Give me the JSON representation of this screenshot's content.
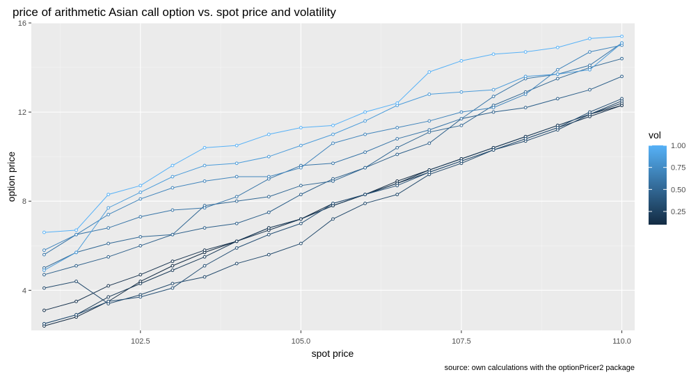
{
  "chart_data": {
    "type": "line",
    "title": "price of arithmetic Asian call option vs. spot price and volatility",
    "xlabel": "spot price",
    "ylabel": "option price",
    "caption": "source: own calculations with the optionPricer2 package",
    "xlim": [
      100.8,
      110.2
    ],
    "ylim": [
      2.2,
      16.0
    ],
    "x_ticks": [
      102.5,
      105.0,
      107.5,
      110.0
    ],
    "x_tick_labels": [
      "102.5",
      "105.0",
      "107.5",
      "110.0"
    ],
    "y_ticks": [
      4,
      8,
      12,
      16
    ],
    "y_tick_labels": [
      "4",
      "8",
      "12",
      "16"
    ],
    "grid": true,
    "legend": {
      "title": "vol",
      "position": "right",
      "labels": [
        "1.00",
        "0.75",
        "0.50",
        "0.25"
      ],
      "label_values": [
        1.0,
        0.75,
        0.5,
        0.25
      ],
      "range": [
        0.1,
        1.0
      ],
      "color_low": "#132b43",
      "color_high": "#56b1f7"
    },
    "x": [
      101.0,
      101.5,
      102.0,
      102.5,
      103.0,
      103.5,
      104.0,
      104.5,
      105.0,
      105.5,
      106.0,
      106.5,
      107.0,
      107.5,
      108.0,
      108.5,
      109.0,
      109.5,
      110.0
    ],
    "series": [
      {
        "vol": 0.1,
        "values": [
          2.4,
          2.8,
          3.5,
          4.4,
          5.1,
          5.7,
          6.2,
          6.8,
          7.2,
          7.9,
          8.3,
          8.9,
          9.4,
          9.9,
          10.4,
          10.9,
          11.4,
          11.9,
          12.3
        ]
      },
      {
        "vol": 0.15,
        "values": [
          3.1,
          3.5,
          4.2,
          4.7,
          5.3,
          5.8,
          6.2,
          6.7,
          7.2,
          7.8,
          8.3,
          8.8,
          9.3,
          9.8,
          10.3,
          10.8,
          11.3,
          11.8,
          12.3
        ]
      },
      {
        "vol": 0.2,
        "values": [
          2.5,
          2.9,
          3.7,
          4.3,
          4.9,
          5.5,
          6.2,
          6.8,
          7.2,
          7.8,
          8.3,
          8.8,
          9.4,
          9.9,
          10.4,
          10.9,
          11.4,
          11.9,
          12.4
        ]
      },
      {
        "vol": 0.3,
        "values": [
          4.1,
          4.4,
          3.4,
          3.8,
          4.3,
          4.6,
          5.2,
          5.6,
          6.1,
          7.2,
          7.9,
          8.3,
          9.2,
          9.7,
          10.3,
          10.7,
          11.2,
          11.9,
          12.5
        ]
      },
      {
        "vol": 0.35,
        "values": [
          2.5,
          2.9,
          3.5,
          3.7,
          4.1,
          5.1,
          5.9,
          6.5,
          7.0,
          7.9,
          8.3,
          8.7,
          9.3,
          9.8,
          10.3,
          10.8,
          11.3,
          12.0,
          12.6
        ]
      },
      {
        "vol": 0.45,
        "values": [
          4.7,
          5.1,
          5.5,
          6.0,
          6.5,
          6.8,
          7.0,
          7.5,
          8.3,
          9.0,
          9.5,
          10.1,
          10.6,
          11.7,
          12.0,
          12.2,
          12.6,
          13.0,
          13.6
        ]
      },
      {
        "vol": 0.5,
        "values": [
          5.0,
          5.7,
          6.1,
          6.4,
          6.5,
          7.8,
          8.0,
          8.2,
          8.7,
          8.9,
          9.5,
          10.4,
          11.1,
          11.4,
          12.3,
          12.9,
          13.5,
          14.0,
          14.4
        ]
      },
      {
        "vol": 0.6,
        "values": [
          5.6,
          6.5,
          6.8,
          7.3,
          7.6,
          7.7,
          8.2,
          9.0,
          9.6,
          9.7,
          10.2,
          10.8,
          11.2,
          11.7,
          12.7,
          13.5,
          13.7,
          14.1,
          15.1
        ]
      },
      {
        "vol": 0.7,
        "values": [
          5.8,
          6.5,
          7.4,
          8.1,
          8.6,
          8.9,
          9.1,
          9.1,
          9.5,
          10.6,
          11.0,
          11.3,
          11.6,
          12.0,
          12.2,
          12.8,
          13.9,
          14.7,
          15.0
        ]
      },
      {
        "vol": 0.85,
        "values": [
          4.9,
          5.7,
          7.7,
          8.4,
          9.1,
          9.6,
          9.7,
          10.0,
          10.5,
          11.0,
          11.6,
          12.3,
          12.8,
          12.9,
          13.0,
          13.6,
          13.7,
          13.9,
          15.1
        ]
      },
      {
        "vol": 1.0,
        "values": [
          6.6,
          6.7,
          8.3,
          8.7,
          9.6,
          10.4,
          10.5,
          11.0,
          11.3,
          11.4,
          12.0,
          12.4,
          13.8,
          14.3,
          14.6,
          14.7,
          14.9,
          15.3,
          15.4
        ]
      }
    ]
  }
}
